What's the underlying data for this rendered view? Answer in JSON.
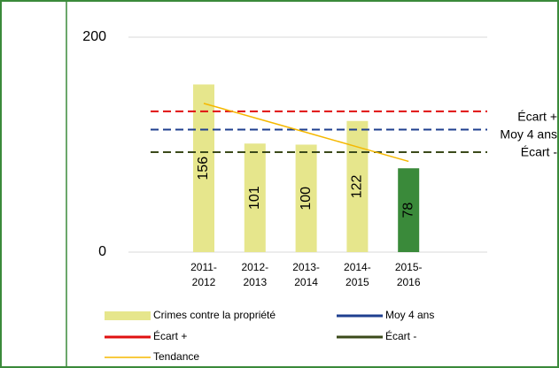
{
  "chart_data": {
    "type": "bar",
    "categories": [
      "2011-2012",
      "2012-2013",
      "2013-2014",
      "2014-2015",
      "2015-2016"
    ],
    "series": [
      {
        "name": "Crimes contre la propriété",
        "color": "#e6e68c",
        "point_colors": [
          "#e6e68c",
          "#e6e68c",
          "#e6e68c",
          "#e6e68c",
          "#3a8a3a"
        ],
        "values": [
          156,
          101,
          100,
          122,
          78
        ]
      },
      {
        "name": "Moy 4 ans",
        "color": "#1f3f8f",
        "value": 114
      },
      {
        "name": "Écart +",
        "color": "#e01010",
        "value": 131
      },
      {
        "name": "Écart -",
        "color": "#3b4a1a",
        "value": 93
      },
      {
        "name": "Tendance",
        "color": "#f5b800",
        "values": [
          138.4,
          124.9,
          111.4,
          97.9,
          84.4
        ]
      }
    ],
    "ylim": [
      0,
      200
    ],
    "yticks": [
      0,
      200
    ],
    "grid": true
  }
}
